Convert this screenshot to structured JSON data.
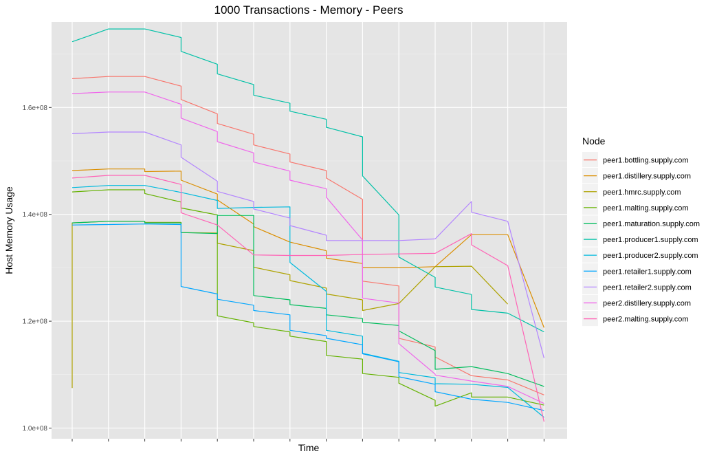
{
  "chart_data": {
    "type": "line",
    "title": "1000 Transactions - Memory - Peers",
    "xlabel": "Time",
    "ylabel": "Host Memory Usage",
    "x_ticks_labeled": false,
    "x_points": 14,
    "ylim": [
      98000000,
      176000000
    ],
    "y_ticks": [
      {
        "value": 100000000,
        "label": "1.0e+08"
      },
      {
        "value": 120000000,
        "label": "1.2e+08"
      },
      {
        "value": 140000000,
        "label": "1.4e+08"
      },
      {
        "value": 160000000,
        "label": "1.6e+08"
      }
    ],
    "grid": true,
    "panel_background": "#e5e5e5",
    "legend_position": "right",
    "legend_title": "Node",
    "series": [
      {
        "name": "peer1.bottling.supply.com",
        "color": "#F8766D",
        "points": [
          [
            0,
            165.4
          ],
          [
            1,
            165.8
          ],
          [
            2,
            165.8
          ],
          [
            3,
            164.0
          ],
          [
            3,
            161.5
          ],
          [
            4,
            158.8
          ],
          [
            4,
            157.0
          ],
          [
            5,
            155.0
          ],
          [
            5,
            153.0
          ],
          [
            6,
            151.3
          ],
          [
            6,
            149.8
          ],
          [
            7,
            148.2
          ],
          [
            7,
            146.8
          ],
          [
            8,
            142.8
          ],
          [
            8,
            127.5
          ],
          [
            9,
            126.6
          ],
          [
            9,
            116.8
          ],
          [
            10,
            115.2
          ],
          [
            10,
            113.3
          ],
          [
            11,
            109.8
          ],
          [
            12,
            109.0
          ],
          [
            13,
            106.2
          ]
        ]
      },
      {
        "name": "peer1.distillery.supply.com",
        "color": "#DB8E00",
        "points": [
          [
            0,
            148.2
          ],
          [
            1,
            148.5
          ],
          [
            2,
            148.5
          ],
          [
            2,
            148.0
          ],
          [
            3,
            148.1
          ],
          [
            3,
            146.4
          ],
          [
            4,
            143.8
          ],
          [
            4,
            142.7
          ],
          [
            5,
            138.2
          ],
          [
            5,
            137.7
          ],
          [
            6,
            134.8
          ],
          [
            6,
            134.8
          ],
          [
            7,
            133.2
          ],
          [
            7,
            131.8
          ],
          [
            8,
            130.8
          ],
          [
            8,
            130.0
          ],
          [
            9,
            130.0
          ],
          [
            10,
            130.2
          ],
          [
            11,
            136.2
          ],
          [
            12,
            136.2
          ],
          [
            13,
            118.8
          ]
        ]
      },
      {
        "name": "peer1.hmrc.supply.com",
        "color": "#AEA200",
        "points": [
          [
            0,
            107.5
          ],
          [
            0,
            138.4
          ],
          [
            1,
            138.7
          ],
          [
            2,
            138.7
          ],
          [
            2,
            138.5
          ],
          [
            3,
            138.5
          ],
          [
            3,
            136.6
          ],
          [
            4,
            136.5
          ],
          [
            4,
            134.6
          ],
          [
            5,
            133.2
          ],
          [
            5,
            130.1
          ],
          [
            6,
            128.7
          ],
          [
            6,
            127.6
          ],
          [
            7,
            126.2
          ],
          [
            7,
            125.1
          ],
          [
            8,
            124.0
          ],
          [
            8,
            122.0
          ],
          [
            9,
            123.3
          ],
          [
            10,
            130.2
          ],
          [
            11,
            130.3
          ],
          [
            12,
            123.2
          ]
        ]
      },
      {
        "name": "peer1.malting.supply.com",
        "color": "#64B200",
        "points": [
          [
            0,
            144.2
          ],
          [
            1,
            144.6
          ],
          [
            2,
            144.6
          ],
          [
            2,
            143.9
          ],
          [
            3,
            142.3
          ],
          [
            3,
            141.2
          ],
          [
            4,
            139.9
          ],
          [
            4,
            121.0
          ],
          [
            5,
            119.7
          ],
          [
            5,
            119.0
          ],
          [
            6,
            118.0
          ],
          [
            6,
            117.2
          ],
          [
            7,
            116.2
          ],
          [
            7,
            113.6
          ],
          [
            8,
            112.9
          ],
          [
            8,
            110.2
          ],
          [
            9,
            109.5
          ],
          [
            9,
            108.4
          ],
          [
            10,
            105.2
          ],
          [
            10,
            104.1
          ],
          [
            11,
            106.6
          ],
          [
            11,
            105.8
          ],
          [
            12,
            105.8
          ],
          [
            13,
            104.3
          ]
        ]
      },
      {
        "name": "peer1.maturation.supply.com",
        "color": "#00BD5C",
        "points": [
          [
            0,
            138.4
          ],
          [
            1,
            138.7
          ],
          [
            2,
            138.7
          ],
          [
            2,
            138.4
          ],
          [
            3,
            138.4
          ],
          [
            3,
            136.6
          ],
          [
            4,
            136.4
          ],
          [
            4,
            139.8
          ],
          [
            5,
            139.8
          ],
          [
            5,
            124.8
          ],
          [
            6,
            124.0
          ],
          [
            6,
            123.1
          ],
          [
            7,
            122.4
          ],
          [
            7,
            121.2
          ],
          [
            8,
            120.5
          ],
          [
            8,
            119.8
          ],
          [
            9,
            119.2
          ],
          [
            9,
            118.2
          ],
          [
            10,
            114.5
          ],
          [
            10,
            111.0
          ],
          [
            11,
            111.5
          ],
          [
            12,
            110.2
          ],
          [
            13,
            107.8
          ]
        ]
      },
      {
        "name": "peer1.producer1.supply.com",
        "color": "#00C1A7",
        "points": [
          [
            0,
            172.3
          ],
          [
            1,
            174.7
          ],
          [
            2,
            174.7
          ],
          [
            3,
            173.1
          ],
          [
            3,
            170.5
          ],
          [
            4,
            168.1
          ],
          [
            4,
            166.3
          ],
          [
            5,
            164.3
          ],
          [
            5,
            162.3
          ],
          [
            6,
            160.8
          ],
          [
            6,
            159.3
          ],
          [
            7,
            157.8
          ],
          [
            7,
            156.3
          ],
          [
            8,
            154.5
          ],
          [
            8,
            147.2
          ],
          [
            9,
            139.9
          ],
          [
            9,
            132.0
          ],
          [
            10,
            128.2
          ],
          [
            10,
            126.4
          ],
          [
            11,
            125.0
          ],
          [
            11,
            122.2
          ],
          [
            12,
            121.5
          ],
          [
            13,
            118.0
          ]
        ]
      },
      {
        "name": "peer1.producer2.supply.com",
        "color": "#00BADE",
        "points": [
          [
            0,
            145.0
          ],
          [
            1,
            145.4
          ],
          [
            2,
            145.4
          ],
          [
            3,
            144.1
          ],
          [
            4,
            142.6
          ],
          [
            4,
            141.1
          ],
          [
            5,
            141.3
          ],
          [
            6,
            141.4
          ],
          [
            6,
            131.0
          ],
          [
            7,
            125.6
          ],
          [
            7,
            118.3
          ],
          [
            8,
            117.2
          ],
          [
            8,
            114.0
          ],
          [
            9,
            112.5
          ],
          [
            9,
            110.4
          ],
          [
            10,
            109.4
          ],
          [
            10,
            108.3
          ],
          [
            11,
            108.2
          ],
          [
            12,
            107.6
          ],
          [
            13,
            102.0
          ]
        ]
      },
      {
        "name": "peer1.retailer1.supply.com",
        "color": "#00A6FF",
        "points": [
          [
            0,
            138.0
          ],
          [
            1,
            138.1
          ],
          [
            2,
            138.2
          ],
          [
            3,
            138.1
          ],
          [
            3,
            126.5
          ],
          [
            4,
            125.1
          ],
          [
            4,
            124.1
          ],
          [
            5,
            123.0
          ],
          [
            5,
            122.0
          ],
          [
            6,
            121.2
          ],
          [
            6,
            118.3
          ],
          [
            7,
            117.3
          ],
          [
            7,
            116.8
          ],
          [
            8,
            115.6
          ],
          [
            8,
            113.9
          ],
          [
            9,
            112.4
          ],
          [
            9,
            109.6
          ],
          [
            10,
            108.2
          ],
          [
            10,
            106.8
          ],
          [
            11,
            105.4
          ],
          [
            12,
            104.8
          ],
          [
            13,
            103.3
          ]
        ]
      },
      {
        "name": "peer1.retailer2.supply.com",
        "color": "#B385FF",
        "points": [
          [
            0,
            155.1
          ],
          [
            1,
            155.4
          ],
          [
            2,
            155.4
          ],
          [
            3,
            153.0
          ],
          [
            3,
            150.7
          ],
          [
            4,
            146.2
          ],
          [
            4,
            144.3
          ],
          [
            5,
            142.4
          ],
          [
            5,
            141.0
          ],
          [
            6,
            139.3
          ],
          [
            6,
            137.9
          ],
          [
            7,
            136.1
          ],
          [
            7,
            135.1
          ],
          [
            8,
            135.1
          ],
          [
            9,
            135.1
          ],
          [
            10,
            135.4
          ],
          [
            11,
            142.4
          ],
          [
            11,
            140.4
          ],
          [
            12,
            138.7
          ],
          [
            13,
            113.1
          ]
        ]
      },
      {
        "name": "peer2.distillery.supply.com",
        "color": "#EF67EB",
        "points": [
          [
            0,
            162.6
          ],
          [
            1,
            162.9
          ],
          [
            2,
            162.9
          ],
          [
            3,
            160.6
          ],
          [
            3,
            158.0
          ],
          [
            4,
            155.5
          ],
          [
            4,
            153.6
          ],
          [
            5,
            151.5
          ],
          [
            5,
            149.8
          ],
          [
            6,
            148.1
          ],
          [
            6,
            146.4
          ],
          [
            7,
            144.8
          ],
          [
            7,
            143.2
          ],
          [
            8,
            135.2
          ],
          [
            8,
            124.3
          ],
          [
            9,
            123.4
          ],
          [
            9,
            115.8
          ],
          [
            10,
            110.1
          ],
          [
            10,
            109.9
          ],
          [
            11,
            108.8
          ],
          [
            12,
            107.8
          ],
          [
            13,
            104.6
          ]
        ]
      },
      {
        "name": "peer2.malting.supply.com",
        "color": "#FF63B6",
        "points": [
          [
            0,
            146.8
          ],
          [
            1,
            147.3
          ],
          [
            2,
            147.3
          ],
          [
            3,
            145.6
          ],
          [
            3,
            140.3
          ],
          [
            4,
            138.0
          ],
          [
            5,
            132.4
          ],
          [
            6,
            132.3
          ],
          [
            7,
            132.3
          ],
          [
            8,
            132.5
          ],
          [
            9,
            132.6
          ],
          [
            10,
            132.7
          ],
          [
            11,
            136.4
          ],
          [
            11,
            134.3
          ],
          [
            12,
            130.4
          ],
          [
            13,
            101.2
          ]
        ]
      }
    ]
  }
}
